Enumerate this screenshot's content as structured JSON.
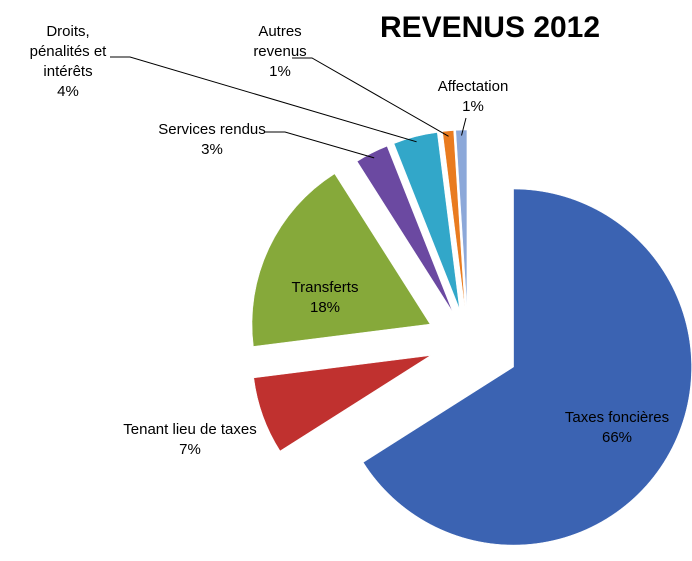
{
  "chart_data": {
    "type": "pie",
    "title": "REVENUS 2012",
    "categories": [
      "Taxes foncières",
      "Tenant lieu de taxes",
      "Transferts",
      "Services rendus",
      "Droits, pénalités et intérêts",
      "Autres revenus",
      "Affectation"
    ],
    "values": [
      66,
      7,
      18,
      3,
      4,
      1,
      1
    ],
    "value_labels": [
      "66%",
      "7%",
      "18%",
      "3%",
      "4%",
      "1%",
      "1%"
    ],
    "colors": [
      "#3b63b2",
      "#c0312f",
      "#86a93a",
      "#6b49a1",
      "#32a7c9",
      "#e97b1f",
      "#8ca8d9"
    ]
  }
}
